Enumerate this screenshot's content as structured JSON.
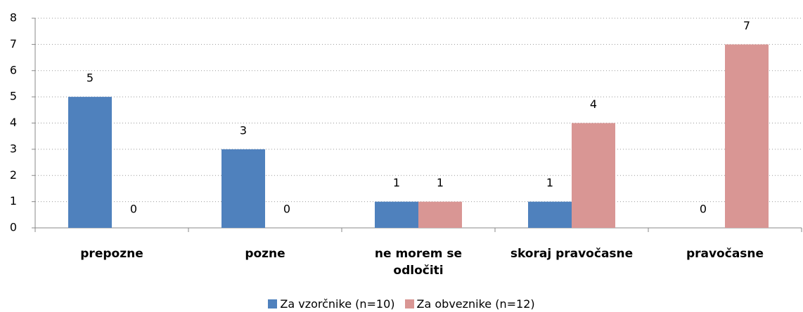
{
  "chart_data": {
    "type": "bar",
    "categories": [
      "prepozne",
      "pozne",
      "ne morem se odločiti",
      "skoraj pravočasne",
      "pravočasne"
    ],
    "series": [
      {
        "name": "Za vzorčnike (n=10)",
        "color": "#4f81bd",
        "values": [
          5,
          3,
          1,
          1,
          0
        ]
      },
      {
        "name": "Za obveznike (n=12)",
        "color": "#d99694",
        "values": [
          0,
          0,
          1,
          4,
          7
        ]
      }
    ],
    "ylim": [
      0,
      8
    ],
    "yticks": [
      0,
      1,
      2,
      3,
      4,
      5,
      6,
      7,
      8
    ],
    "grid": true,
    "legend": "bottom"
  }
}
